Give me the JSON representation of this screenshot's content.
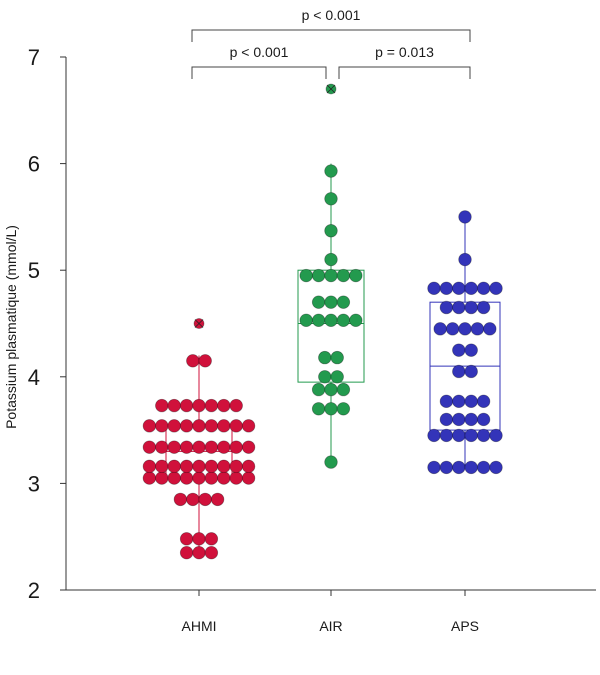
{
  "chart_data": {
    "type": "scatter",
    "subtype": "box-with-dot-strip",
    "title": "",
    "xlabel": "",
    "ylabel": "Potassium plasmatique (mmol/L)",
    "ylim": [
      2,
      7
    ],
    "yticks": [
      "2",
      "3",
      "4",
      "5",
      "6",
      "7"
    ],
    "grid": false,
    "groups": [
      {
        "name": "AHMI",
        "color": "#d0113b",
        "box": {
          "min": 2.35,
          "q1": 3.05,
          "median": 3.3,
          "q3": 3.55,
          "max": 4.2
        },
        "outliers": [
          4.5
        ],
        "points": [
          2.35,
          2.35,
          2.35,
          2.48,
          2.48,
          2.48,
          2.85,
          2.85,
          2.85,
          2.85,
          3.05,
          3.05,
          3.05,
          3.05,
          3.05,
          3.05,
          3.05,
          3.05,
          3.05,
          3.16,
          3.16,
          3.16,
          3.16,
          3.16,
          3.16,
          3.16,
          3.16,
          3.16,
          3.34,
          3.34,
          3.34,
          3.34,
          3.34,
          3.34,
          3.34,
          3.34,
          3.34,
          3.54,
          3.54,
          3.54,
          3.54,
          3.54,
          3.54,
          3.54,
          3.54,
          3.54,
          3.73,
          3.73,
          3.73,
          3.73,
          3.73,
          3.73,
          3.73,
          4.15,
          4.15,
          4.5
        ]
      },
      {
        "name": "AIR",
        "color": "#239a4e",
        "box": {
          "min": 3.2,
          "q1": 3.95,
          "median": 4.5,
          "q3": 5.0,
          "max": 6.0
        },
        "outliers": [
          6.7
        ],
        "points": [
          3.2,
          3.7,
          3.7,
          3.7,
          3.88,
          3.88,
          3.88,
          4.0,
          4.0,
          4.18,
          4.18,
          4.53,
          4.53,
          4.53,
          4.53,
          4.53,
          4.7,
          4.7,
          4.7,
          4.95,
          4.95,
          4.95,
          4.95,
          4.95,
          5.1,
          5.37,
          5.67,
          5.93,
          6.7
        ]
      },
      {
        "name": "APS",
        "color": "#3334b9",
        "box": {
          "min": 3.15,
          "q1": 3.5,
          "median": 4.1,
          "q3": 4.7,
          "max": 5.5
        },
        "outliers": [],
        "points": [
          3.15,
          3.15,
          3.15,
          3.15,
          3.15,
          3.15,
          3.45,
          3.45,
          3.45,
          3.45,
          3.45,
          3.45,
          3.6,
          3.6,
          3.6,
          3.6,
          3.77,
          3.77,
          3.77,
          3.77,
          4.05,
          4.05,
          4.25,
          4.25,
          4.45,
          4.45,
          4.45,
          4.45,
          4.45,
          4.65,
          4.65,
          4.65,
          4.65,
          4.83,
          4.83,
          4.83,
          4.83,
          4.83,
          4.83,
          5.1,
          5.5
        ]
      }
    ],
    "annotations": [
      {
        "from": "AHMI",
        "to": "AIR",
        "text": "p < 0.001"
      },
      {
        "from": "AIR",
        "to": "APS",
        "text": "p = 0.013"
      },
      {
        "from": "AHMI",
        "to": "APS",
        "text": "p < 0.001"
      }
    ]
  }
}
